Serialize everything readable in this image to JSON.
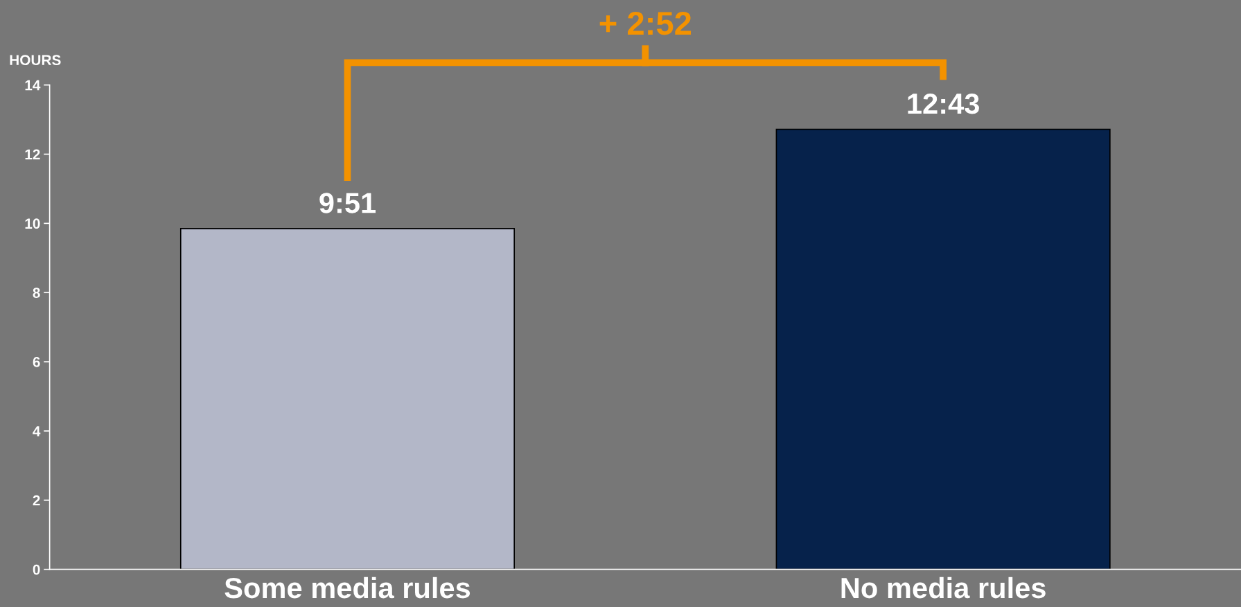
{
  "chart_data": {
    "type": "bar",
    "ylabel": "HOURS",
    "categories": [
      "Some media rules",
      "No media rules"
    ],
    "values": [
      9.85,
      12.72
    ],
    "colors": [
      "#b3b7c8",
      "#06224b"
    ],
    "value_labels": [
      "9:51",
      "12:43"
    ],
    "annotations": [
      "+ 2:52"
    ],
    "ylim": [
      0,
      14
    ],
    "yticks": [
      0,
      2,
      4,
      6,
      8,
      10,
      12,
      14
    ],
    "grid": false,
    "legend": false
  }
}
